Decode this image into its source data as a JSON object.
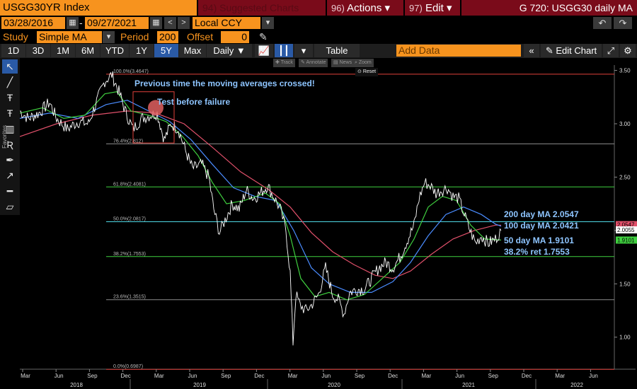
{
  "header": {
    "ticker": "USGG30YR Index",
    "menu_suggested": {
      "num": "94)",
      "label": "Suggested Charts"
    },
    "menu_actions": {
      "num": "96)",
      "label": "Actions ▾"
    },
    "menu_edit": {
      "num": "97)",
      "label": "Edit ▾"
    },
    "title": "G 720: USGG30 daily MA"
  },
  "date_range": {
    "start": "03/28/2016",
    "end": "09/27/2021",
    "separator": "-",
    "currency": "Local CCY"
  },
  "study": {
    "study_label": "Study",
    "study_value": "Simple MA",
    "period_label": "Period",
    "period_value": "200",
    "offset_label": "Offset",
    "offset_value": "0"
  },
  "timeframes": [
    "1D",
    "3D",
    "1M",
    "6M",
    "YTD",
    "1Y",
    "5Y",
    "Max"
  ],
  "selected_timeframe": "5Y",
  "toolbar": {
    "frequency": "Daily ▼",
    "table": "Table",
    "add_data": "Add Data",
    "edit_chart": "Edit Chart"
  },
  "mini_toolbar": {
    "track": "Track",
    "annotate": "Annotate",
    "news": "News",
    "zoom": "Zoom",
    "reset": "Reset"
  },
  "left_tools": {
    "favorites": "Favorites"
  },
  "chart_data": {
    "type": "line",
    "title": "USGG30YR Index",
    "ylim": [
      0.7,
      3.55
    ],
    "y_ticks": [
      "3.50",
      "3.00",
      "2.50",
      "2.00",
      "1.50",
      "1.00"
    ],
    "x_month_labels": [
      "Mar",
      "Jun",
      "Sep",
      "Dec",
      "Mar",
      "Jun",
      "Sep",
      "Dec",
      "Mar",
      "Jun",
      "Sep",
      "Dec",
      "Mar",
      "Jun",
      "Sep",
      "Dec",
      "Mar",
      "Jun"
    ],
    "x_year_labels": [
      "2018",
      "2019",
      "2020",
      "2021",
      "2022"
    ],
    "fib_levels": [
      {
        "label": "100.0%(3.4647)",
        "value": 3.4647,
        "color": "#e0403a"
      },
      {
        "label": "76.4%(2.812)",
        "value": 2.812,
        "color": "#8c8c8c"
      },
      {
        "label": "61.8%(2.4081)",
        "value": 2.4081,
        "color": "#3fcf3f"
      },
      {
        "label": "50.0%(2.0817)",
        "value": 2.0817,
        "color": "#4fd9e6"
      },
      {
        "label": "38.2%(1.7553)",
        "value": 1.7553,
        "color": "#3fcf3f"
      },
      {
        "label": "23.6%(1.3515)",
        "value": 1.3515,
        "color": "#8c8c8c"
      },
      {
        "label": "0.0%(0.6987)",
        "value": 0.6987,
        "color": "#e0403a"
      }
    ],
    "series": [
      {
        "name": "USGG30YR",
        "color": "#ffffff"
      },
      {
        "name": "50 day MA",
        "color": "#3fcf3f"
      },
      {
        "name": "100 day MA",
        "color": "#4a8cff"
      },
      {
        "name": "200 day MA",
        "color": "#e0506a"
      }
    ],
    "annotations": [
      "Previous time the moving averages crossed!",
      "Test before failure",
      "200 day MA 2.0547",
      "100 day MA 2.0421",
      "50 day MA 1.9101",
      "38.2% ret 1.7553"
    ],
    "last_value_tags": [
      {
        "label": "2.0547",
        "value": 2.0547,
        "color": "#e0506a"
      },
      {
        "label": "2.0055",
        "value": 2.0055,
        "color": "#ffffff"
      },
      {
        "label": "1.9101",
        "value": 1.9101,
        "color": "#3fcf3f"
      }
    ]
  }
}
